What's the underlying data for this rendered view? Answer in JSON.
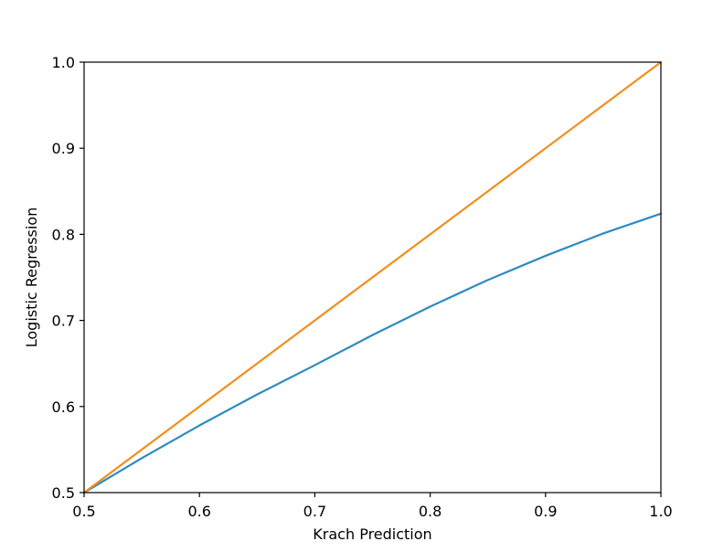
{
  "chart_data": {
    "type": "line",
    "title": "",
    "xlabel": "Krach Prediction",
    "ylabel": "Logistic Regression",
    "xlim": [
      0.5,
      1.0
    ],
    "ylim": [
      0.5,
      1.0
    ],
    "x_ticks": [
      0.5,
      0.6,
      0.7,
      0.8,
      0.9,
      1.0
    ],
    "x_tick_labels": [
      "0.5",
      "0.6",
      "0.7",
      "0.8",
      "0.9",
      "1.0"
    ],
    "y_ticks": [
      0.5,
      0.6,
      0.7,
      0.8,
      0.9,
      1.0
    ],
    "y_tick_labels": [
      "0.5",
      "0.6",
      "0.7",
      "0.8",
      "0.9",
      "1.0"
    ],
    "grid": false,
    "legend": "none",
    "series": [
      {
        "color": "#2e8bc0",
        "x": [
          0.5,
          0.55,
          0.6,
          0.65,
          0.7,
          0.75,
          0.8,
          0.85,
          0.9,
          0.95,
          1.0
        ],
        "y": [
          0.5,
          0.54,
          0.578,
          0.614,
          0.648,
          0.683,
          0.716,
          0.747,
          0.775,
          0.801,
          0.824
        ]
      },
      {
        "color": "#f28e1c",
        "x": [
          0.5,
          1.0
        ],
        "y": [
          0.5,
          1.0
        ]
      }
    ]
  }
}
